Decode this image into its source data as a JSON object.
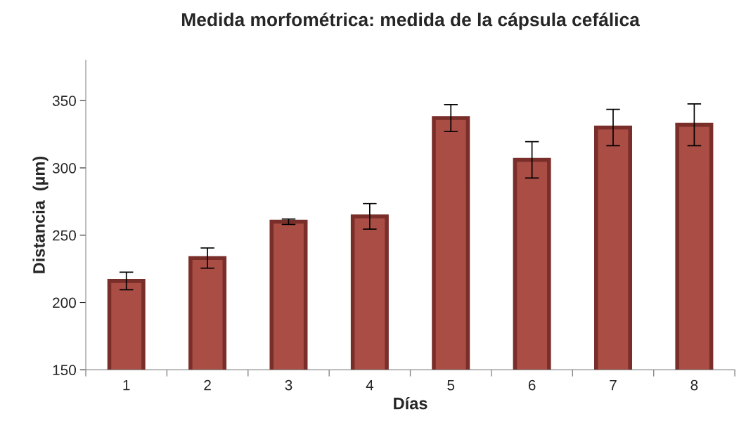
{
  "chart_data": {
    "type": "bar",
    "title": "Medida morfométrica: medida de la cápsula cefálica",
    "xlabel": "Días",
    "ylabel": "Distancia  (µm)",
    "categories": [
      "1",
      "2",
      "3",
      "4",
      "5",
      "6",
      "7",
      "8"
    ],
    "series": [
      {
        "color": "#a94d45",
        "values": [
          216,
          233,
          260,
          264,
          337,
          306,
          330,
          332
        ],
        "errors": [
          6.5,
          7.5,
          2,
          9.5,
          10,
          13.5,
          13.5,
          15.5
        ]
      }
    ],
    "ylim": [
      150,
      380
    ],
    "yticks": [
      150,
      200,
      250,
      300,
      350
    ],
    "grid": false,
    "legend": false
  }
}
